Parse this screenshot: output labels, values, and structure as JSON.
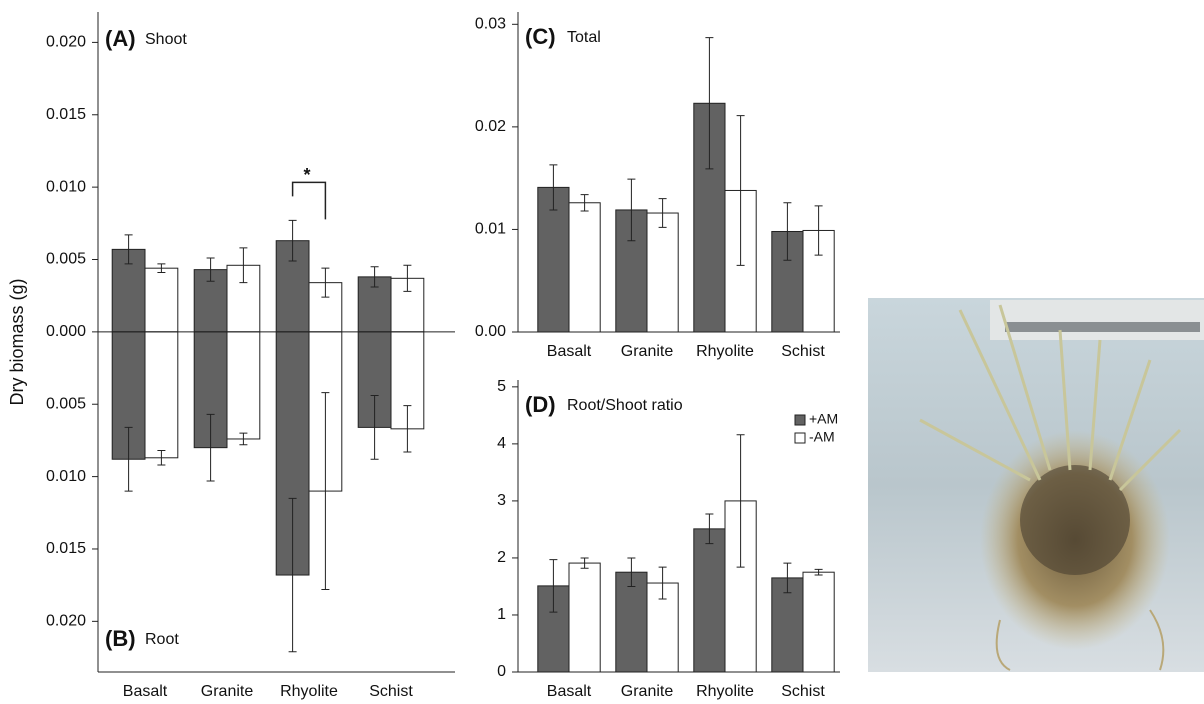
{
  "chart_data": [
    {
      "type": "mirrored-bar",
      "panels": [
        {
          "label": "(A)",
          "title": "Shoot"
        },
        {
          "label": "(B)",
          "title": "Root"
        }
      ],
      "ylabel": "Dry biomass (g)",
      "categories": [
        "Basalt",
        "Granite",
        "Rhyolite",
        "Schist"
      ],
      "shoot": [
        {
          "name": "+AM",
          "color": "#626262",
          "values": [
            0.0057,
            0.0043,
            0.0063,
            0.0038
          ],
          "errors": [
            0.001,
            0.0008,
            0.0014,
            0.0007
          ]
        },
        {
          "name": "-AM",
          "color": "#ffffff",
          "values": [
            0.0044,
            0.0046,
            0.0034,
            0.0037
          ],
          "errors": [
            0.0003,
            0.0012,
            0.001,
            0.0009
          ]
        }
      ],
      "root": [
        {
          "name": "+AM",
          "color": "#626262",
          "values": [
            -0.0088,
            -0.008,
            -0.0168,
            -0.0066
          ],
          "errors": [
            0.0022,
            0.0023,
            0.0053,
            0.0022
          ]
        },
        {
          "name": "-AM",
          "color": "#ffffff",
          "values": [
            -0.0087,
            -0.0074,
            -0.011,
            -0.0067
          ],
          "errors": [
            0.0005,
            0.0004,
            0.0068,
            0.0016
          ]
        }
      ],
      "annotation": "*",
      "ylim": [
        -0.0235,
        0.0221
      ],
      "yticks": [
        {
          "value": 0.02,
          "label": "0.020"
        },
        {
          "value": 0.015,
          "label": "0.015"
        },
        {
          "value": 0.01,
          "label": "0.010"
        },
        {
          "value": 0.005,
          "label": "0.005"
        },
        {
          "value": 0,
          "label": "0.000"
        },
        {
          "value": -0.005,
          "label": "0.005"
        },
        {
          "value": -0.01,
          "label": "0.010"
        },
        {
          "value": -0.015,
          "label": "0.015"
        },
        {
          "value": -0.02,
          "label": "0.020"
        }
      ]
    },
    {
      "type": "bar",
      "panel": {
        "label": "(C)",
        "title": "Total"
      },
      "categories": [
        "Basalt",
        "Granite",
        "Rhyolite",
        "Schist"
      ],
      "series": [
        {
          "name": "+AM",
          "color": "#626262",
          "values": [
            0.0141,
            0.0119,
            0.0223,
            0.0098
          ],
          "errors": [
            0.0022,
            0.003,
            0.0064,
            0.0028
          ]
        },
        {
          "name": "-AM",
          "color": "#ffffff",
          "values": [
            0.0126,
            0.0116,
            0.0138,
            0.0099
          ],
          "errors": [
            0.0008,
            0.0014,
            0.0073,
            0.0024
          ]
        }
      ],
      "ylim": [
        0,
        0.0312
      ],
      "yticks": [
        {
          "value": 0,
          "label": "0.00"
        },
        {
          "value": 0.01,
          "label": "0.01"
        },
        {
          "value": 0.02,
          "label": "0.02"
        },
        {
          "value": 0.03,
          "label": "0.03"
        }
      ]
    },
    {
      "type": "bar",
      "panel": {
        "label": "(D)",
        "title": "Root/Shoot ratio"
      },
      "categories": [
        "Basalt",
        "Granite",
        "Rhyolite",
        "Schist"
      ],
      "series": [
        {
          "name": "+AM",
          "color": "#626262",
          "values": [
            1.51,
            1.75,
            2.51,
            1.65
          ],
          "errors": [
            0.46,
            0.25,
            0.26,
            0.26
          ]
        },
        {
          "name": "-AM",
          "color": "#ffffff",
          "values": [
            1.91,
            1.56,
            3.0,
            1.75
          ],
          "errors": [
            0.09,
            0.28,
            1.16,
            0.05
          ]
        }
      ],
      "legend": "upper right",
      "ylim": [
        0,
        5.12
      ],
      "yticks": [
        0,
        1,
        2,
        3,
        4,
        5
      ]
    }
  ]
}
